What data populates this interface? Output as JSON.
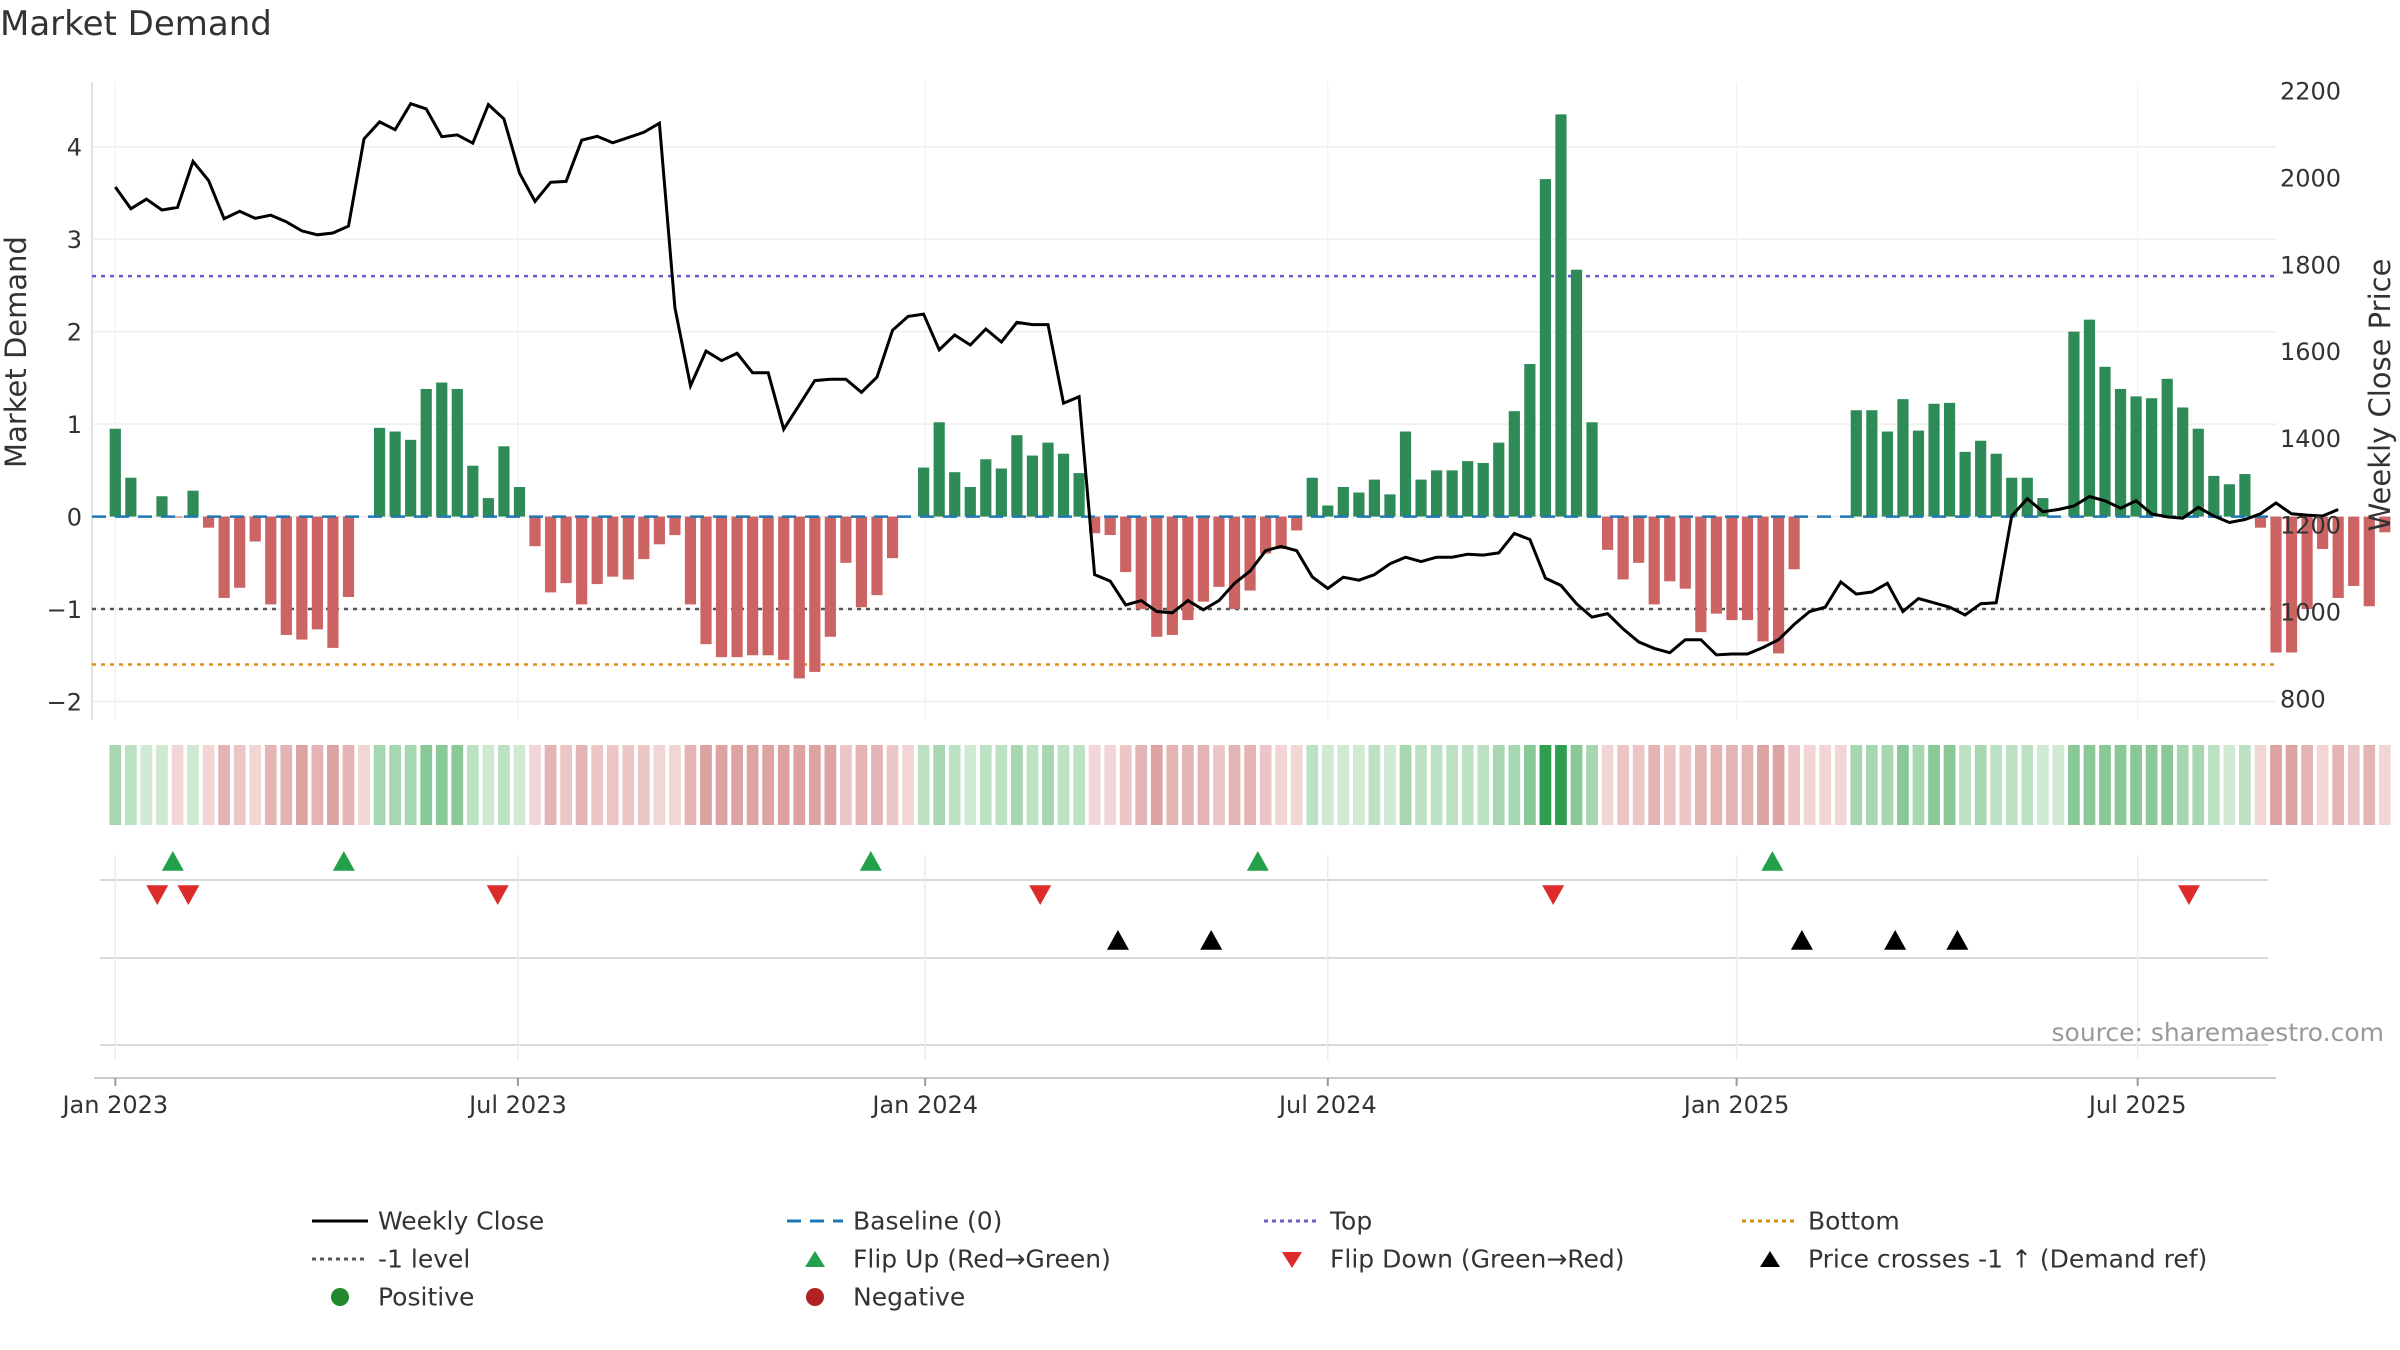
{
  "chart_data": {
    "type": "bar",
    "title": "Market Demand",
    "ylabel": "Market Demand",
    "y2label": "Weekly Close Price",
    "ylim": [
      -2.2,
      4.7
    ],
    "y2lim": [
      750,
      2220
    ],
    "yticks": [
      -2,
      -1,
      0,
      1,
      2,
      3,
      4
    ],
    "y2ticks": [
      800,
      1000,
      1200,
      1400,
      1600,
      1800,
      2000,
      2200
    ],
    "x_start_week": -1.5,
    "x_end_week": 139,
    "top_level": 2.6,
    "bottom_level": -1.6,
    "minus_one_level": -1,
    "xtick_labels": [
      {
        "week": 0,
        "label": "Jan 2023"
      },
      {
        "week": 25.9,
        "label": "Jul 2023"
      },
      {
        "week": 52.1,
        "label": "Jan 2024"
      },
      {
        "week": 78.0,
        "label": "Jul 2024"
      },
      {
        "week": 104.3,
        "label": "Jan 2025"
      },
      {
        "week": 130.1,
        "label": "Jul 2025"
      }
    ],
    "demand_values": [
      0.95,
      0.42,
      0,
      0.22,
      -0.01,
      0.28,
      -0.12,
      -0.88,
      -0.77,
      -0.27,
      -0.95,
      -1.28,
      -1.33,
      -1.22,
      -1.42,
      -0.87,
      0,
      0.96,
      0.92,
      0.83,
      1.38,
      1.45,
      1.38,
      0.55,
      0.2,
      0.76,
      0.32,
      -0.32,
      -0.82,
      -0.72,
      -0.95,
      -0.73,
      -0.65,
      -0.68,
      -0.46,
      -0.3,
      -0.2,
      -0.95,
      -1.38,
      -1.52,
      -1.52,
      -1.5,
      -1.5,
      -1.55,
      -1.75,
      -1.68,
      -1.3,
      -0.5,
      -0.98,
      -0.85,
      -0.45,
      0,
      0.53,
      1.02,
      0.48,
      0.32,
      0.62,
      0.52,
      0.88,
      0.66,
      0.8,
      0.68,
      0.47,
      -0.18,
      -0.2,
      -0.6,
      -1.0,
      -1.3,
      -1.28,
      -1.12,
      -0.92,
      -0.76,
      -1.0,
      -0.8,
      -0.4,
      -0.35,
      -0.15,
      0.42,
      0.12,
      0.32,
      0.26,
      0.4,
      0.24,
      0.92,
      0.4,
      0.5,
      0.5,
      0.6,
      0.58,
      0.8,
      1.14,
      1.65,
      3.65,
      4.35,
      2.67,
      1.02,
      -0.36,
      -0.68,
      -0.5,
      -0.95,
      -0.7,
      -0.78,
      -1.25,
      -1.05,
      -1.12,
      -1.12,
      -1.35,
      -1.48,
      -0.57,
      0,
      0,
      0,
      1.15,
      1.15,
      0.92,
      1.27,
      0.93,
      1.22,
      1.23,
      0.7,
      0.82,
      0.68,
      0.42,
      0.42,
      0.2,
      0,
      2.0,
      2.13,
      1.62,
      1.38,
      1.3,
      1.28,
      1.49,
      1.18,
      0.95,
      0.44,
      0.35,
      0.46,
      -0.12,
      -1.47,
      -1.47,
      -1.0,
      -0.35,
      -0.88,
      -0.75,
      -0.97,
      -0.17
    ],
    "close_price": [
      1978,
      1928,
      1950,
      1925,
      1931,
      2037,
      1993,
      1905,
      1922,
      1906,
      1913,
      1898,
      1877,
      1868,
      1872,
      1888,
      2089,
      2128,
      2110,
      2170,
      2158,
      2094,
      2098,
      2079,
      2168,
      2135,
      2010,
      1945,
      1989,
      1991,
      2086,
      2095,
      2080,
      2092,
      2104,
      2125,
      1700,
      1520,
      1600,
      1578,
      1595,
      1550,
      1550,
      1420,
      1476,
      1532,
      1535,
      1535,
      1505,
      1540,
      1648,
      1680,
      1685,
      1603,
      1637,
      1614,
      1651,
      1621,
      1666,
      1661,
      1661,
      1480,
      1495,
      1085,
      1070,
      1015,
      1025,
      1000,
      997,
      1025,
      1004,
      1025,
      1065,
      1093,
      1140,
      1150,
      1140,
      1080,
      1053,
      1079,
      1072,
      1085,
      1110,
      1125,
      1115,
      1125,
      1125,
      1132,
      1130,
      1135,
      1180,
      1166,
      1077,
      1060,
      1018,
      987,
      995,
      960,
      930,
      915,
      905,
      935,
      935,
      900,
      902,
      902,
      917,
      935,
      970,
      1000,
      1010,
      1068,
      1040,
      1045,
      1065,
      1000,
      1030,
      1020,
      1010,
      992,
      1018,
      1020,
      1220,
      1260,
      1230,
      1235,
      1243,
      1265,
      1255,
      1238,
      1255,
      1225,
      1218,
      1215,
      1240,
      1220,
      1205,
      1212,
      1225,
      1250,
      1225,
      1222,
      1220,
      1235
    ],
    "flip_up_weeks": [
      3.7,
      14.7,
      48.6,
      73.5,
      106.6
    ],
    "flip_down_weeks": [
      2.7,
      4.7,
      24.6,
      59.5,
      92.5,
      133.4
    ],
    "price_cross_weeks": [
      64.5,
      70.5,
      108.5,
      114.5,
      118.5
    ],
    "strip_colors": {
      "green_levels": [
        "#cfe9d3",
        "#bde1c3",
        "#a6d7b0",
        "#88c997",
        "#2f9e4f"
      ],
      "red_levels": [
        "#f2d6d6",
        "#ecc6c6",
        "#e4b4b4",
        "#dda2a2"
      ]
    },
    "colors": {
      "positive_bar": "#2e8b57",
      "negative_bar": "#cd6464",
      "price_line": "#000000",
      "baseline": "#1f77b4",
      "top": "#6a5acd",
      "bottom": "#d8900f",
      "minus_one": "#555555",
      "flip_up": "#23a04a",
      "flip_down": "#dd2b2b",
      "cross": "#000000"
    }
  },
  "legend": {
    "weekly_close": "Weekly Close",
    "baseline": "Baseline (0)",
    "top": "Top",
    "bottom": "Bottom",
    "minus_one": "-1 level",
    "flip_up": "Flip Up (Red→Green)",
    "flip_down": "Flip Down (Green→Red)",
    "price_cross": "Price crosses -1 ↑ (Demand ref)",
    "positive": "Positive",
    "negative": "Negative"
  },
  "source": "source: sharemaestro.com"
}
